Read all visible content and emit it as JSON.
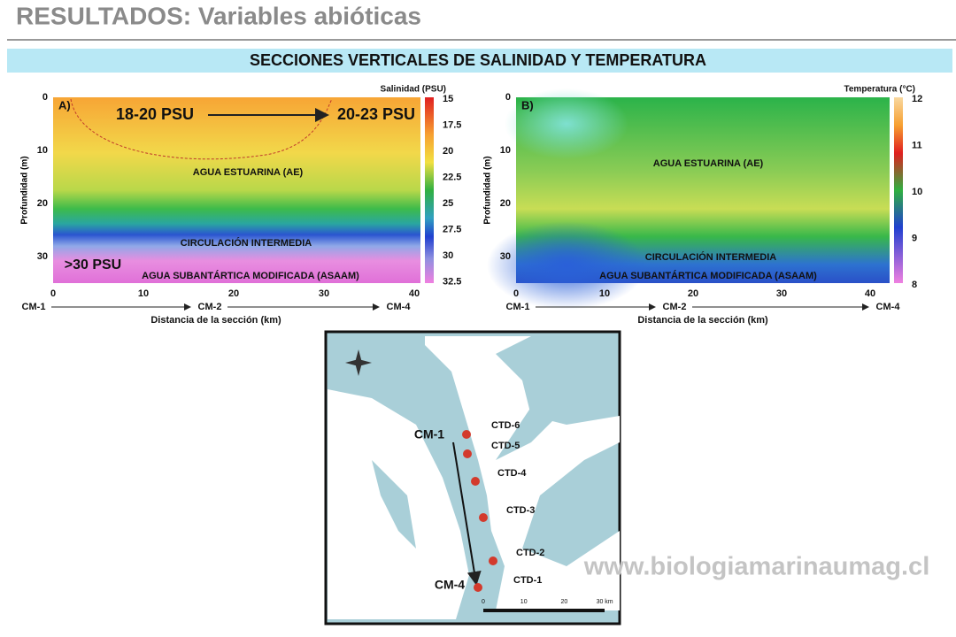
{
  "header": {
    "title": "RESULTADOS: Variables abióticas",
    "banner": "SECCIONES VERTICALES DE SALINIDAD Y TEMPERATURA"
  },
  "panels": [
    {
      "label": "A)",
      "colorbar_title": "Salinidad (PSU)",
      "colorbar_ticks": [
        "15",
        "17.5",
        "20",
        "22.5",
        "25",
        "27.5",
        "30",
        "32.5"
      ],
      "y_label": "Profundidad (m)",
      "y_ticks": [
        "0",
        "10",
        "20",
        "30"
      ],
      "x_ticks": [
        "0",
        "10",
        "20",
        "30",
        "40"
      ],
      "stations": [
        "CM-1",
        "CM-2",
        "CM-4"
      ],
      "x_label": "Distancia de la sección (km)",
      "annotations": [
        "18-20 PSU",
        "20-23 PSU",
        "AGUA ESTUARINA (AE)",
        "CIRCULACIÓN INTERMEDIA",
        ">30 PSU",
        "AGUA SUBANTÁRTICA MODIFICADA (ASAAM)"
      ]
    },
    {
      "label": "B)",
      "colorbar_title": "Temperatura (°C)",
      "colorbar_ticks": [
        "12",
        "11",
        "10",
        "9",
        "8"
      ],
      "y_label": "Profundidad (m)",
      "y_ticks": [
        "0",
        "10",
        "20",
        "30"
      ],
      "x_ticks": [
        "0",
        "10",
        "20",
        "30",
        "40"
      ],
      "stations": [
        "CM-1",
        "CM-2",
        "CM-4"
      ],
      "x_label": "Distancia de la sección (km)",
      "annotations": [
        "AGUA ESTUARINA (AE)",
        "CIRCULACIÓN INTERMEDIA",
        "AGUA SUBANTÁRTICA MODIFICADA (ASAAM)"
      ]
    }
  ],
  "map": {
    "endpoints": [
      "CM-1",
      "CM-4"
    ],
    "stations": [
      "CTD-6",
      "CTD-5",
      "CTD-4",
      "CTD-3",
      "CTD-2",
      "CTD-1"
    ],
    "scale": [
      "0",
      "10",
      "20",
      "30 km"
    ]
  },
  "watermark": "www.biologiamarinaumag.cl"
}
